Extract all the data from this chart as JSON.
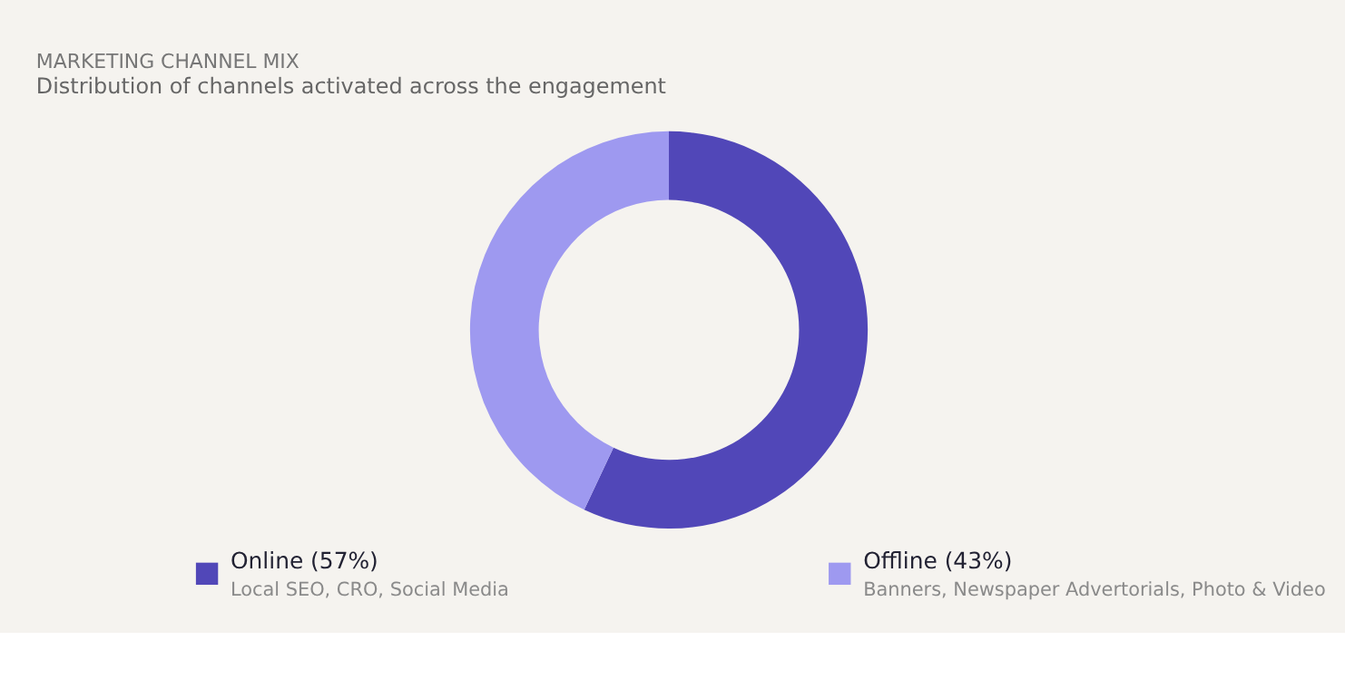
{
  "chart_data": {
    "type": "donut",
    "title": "MARKETING CHANNEL MIX",
    "subtitle": "Distribution of channels activated across the engagement",
    "categories": [
      "Online (57%)",
      "Offline (43%)"
    ],
    "values": [
      57,
      43
    ],
    "colors": [
      "#5147b8",
      "#9e99f0"
    ],
    "annotations": [
      "Local SEO, CRO, Social Media",
      "Banners, Newspaper Advertorials, Photo & Video"
    ],
    "legend": "bottom"
  }
}
